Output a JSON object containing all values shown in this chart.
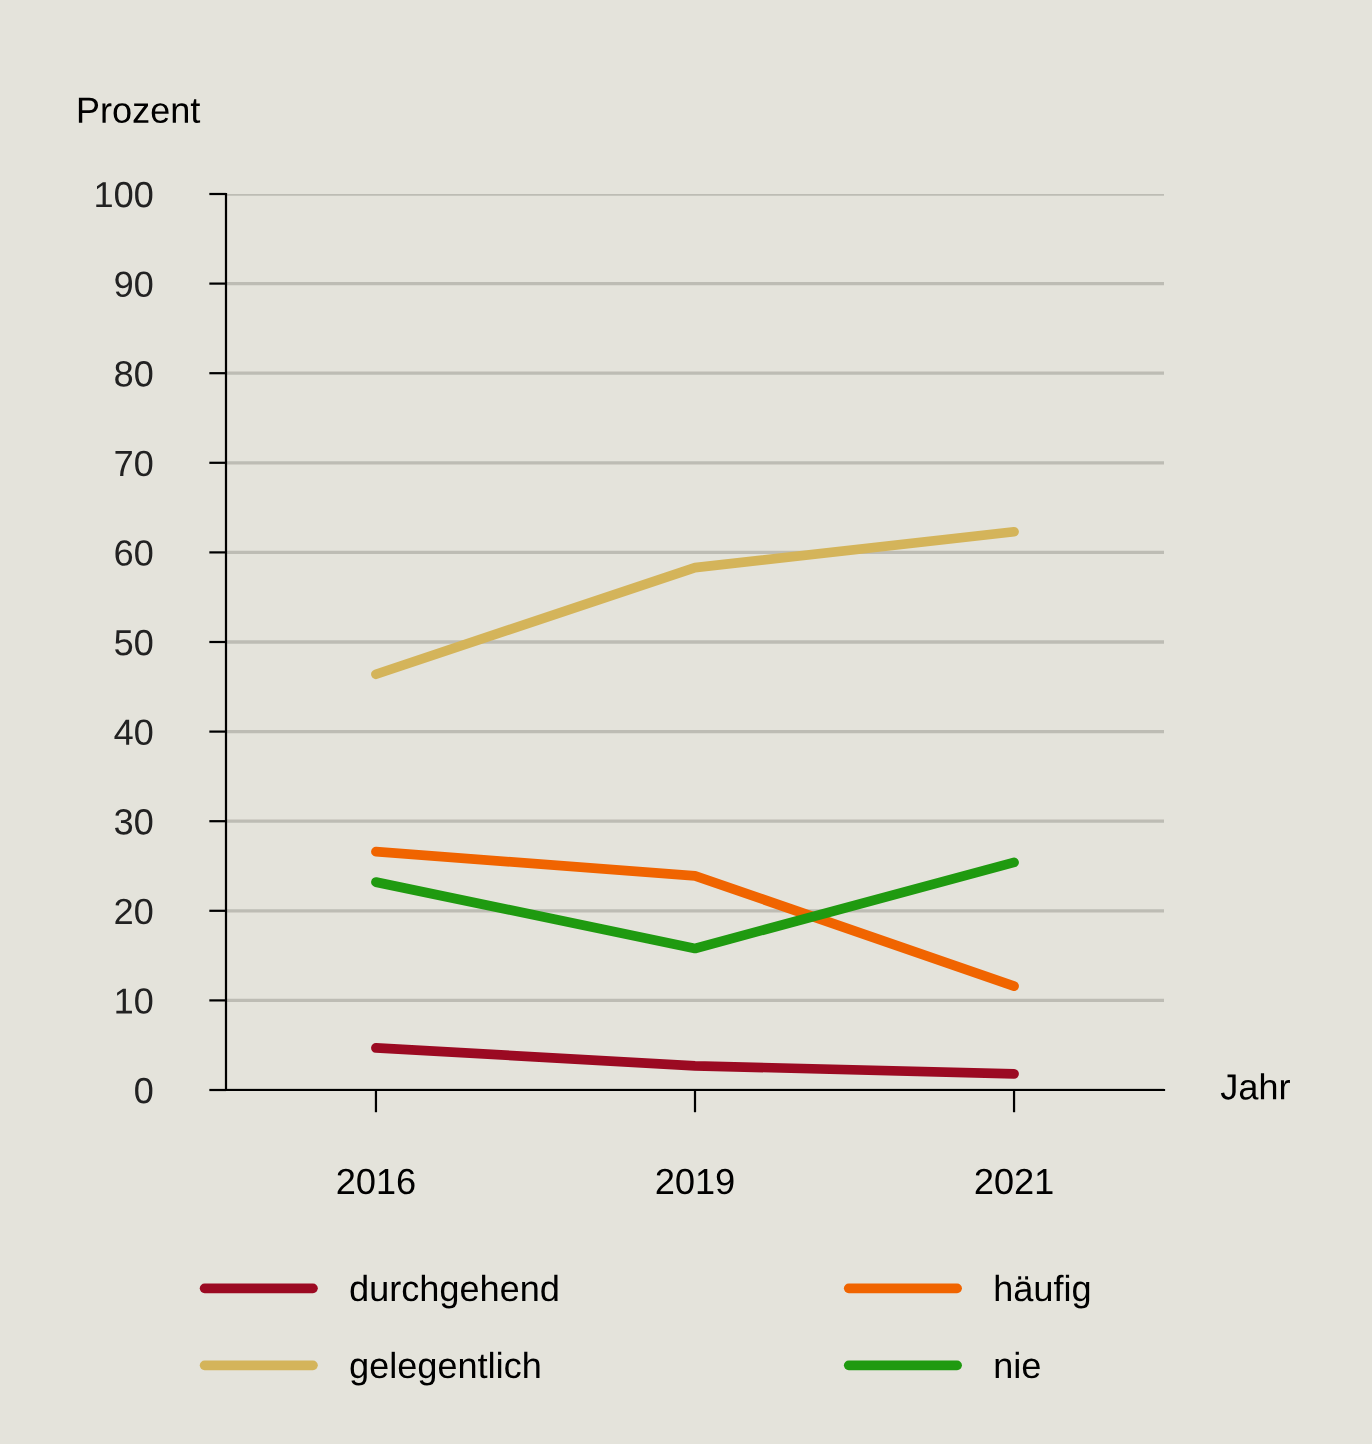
{
  "chart_data": {
    "type": "line",
    "xlabel": "Jahr",
    "ylabel": "Prozent",
    "categories": [
      "2016",
      "2019",
      "2021"
    ],
    "series": [
      {
        "name": "durchgehend",
        "color": "#9b0a22",
        "values": [
          4.7,
          2.7,
          1.8
        ]
      },
      {
        "name": "häufig",
        "color": "#f06400",
        "values": [
          26.6,
          23.9,
          11.6
        ]
      },
      {
        "name": "gelegentlich",
        "color": "#d4b45a",
        "values": [
          46.4,
          58.3,
          62.3
        ]
      },
      {
        "name": "nie",
        "color": "#1f9a10",
        "values": [
          23.2,
          15.8,
          25.4
        ]
      }
    ],
    "ylim": [
      0,
      100
    ],
    "yticks": [
      0,
      10,
      20,
      30,
      40,
      50,
      60,
      70,
      80,
      90,
      100
    ],
    "grid": "y",
    "legend": "bottom",
    "marker": "none",
    "line_style": "solid"
  }
}
